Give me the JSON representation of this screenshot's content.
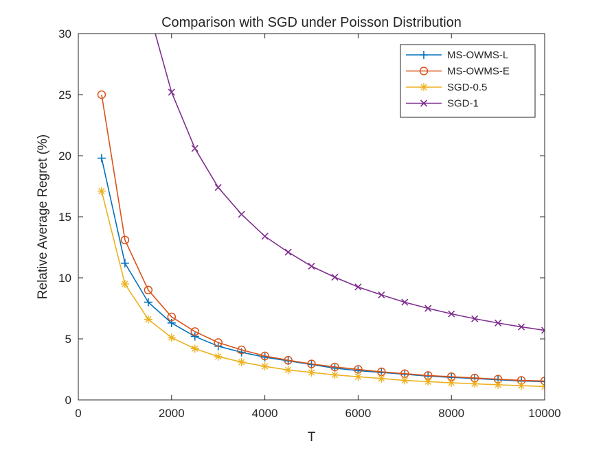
{
  "chart_data": {
    "type": "line",
    "title": "Comparison with SGD under Poisson Distribution",
    "xlabel": "T",
    "ylabel": "Relative Average Regret (%)",
    "xlim": [
      0,
      10000
    ],
    "ylim": [
      0,
      30
    ],
    "xticks": [
      0,
      2000,
      4000,
      6000,
      8000,
      10000
    ],
    "yticks": [
      0,
      5,
      10,
      15,
      20,
      25,
      30
    ],
    "grid": false,
    "legend_position": "top-right",
    "x": [
      500,
      1000,
      1500,
      2000,
      2500,
      3000,
      3500,
      4000,
      4500,
      5000,
      5500,
      6000,
      6500,
      7000,
      7500,
      8000,
      8500,
      9000,
      9500,
      10000
    ],
    "series": [
      {
        "name": "MS-OWMS-L",
        "color": "#0072BD",
        "marker": "plus",
        "values": [
          19.8,
          11.2,
          8.0,
          6.3,
          5.2,
          4.4,
          3.9,
          3.5,
          3.2,
          2.9,
          2.6,
          2.4,
          2.25,
          2.1,
          1.95,
          1.85,
          1.75,
          1.65,
          1.55,
          1.5
        ]
      },
      {
        "name": "MS-OWMS-E",
        "color": "#D95319",
        "marker": "circle",
        "values": [
          25.0,
          13.1,
          9.0,
          6.8,
          5.6,
          4.7,
          4.1,
          3.6,
          3.25,
          2.95,
          2.7,
          2.5,
          2.3,
          2.15,
          2.0,
          1.9,
          1.8,
          1.7,
          1.6,
          1.55
        ]
      },
      {
        "name": "SGD-0.5",
        "color": "#EDB120",
        "marker": "asterisk",
        "values": [
          17.1,
          9.5,
          6.6,
          5.1,
          4.2,
          3.55,
          3.1,
          2.75,
          2.45,
          2.25,
          2.05,
          1.9,
          1.75,
          1.6,
          1.5,
          1.4,
          1.32,
          1.24,
          1.17,
          1.1
        ]
      },
      {
        "name": "SGD-1",
        "color": "#7E2F8E",
        "marker": "x",
        "values": [
          null,
          null,
          null,
          25.2,
          20.6,
          17.4,
          15.2,
          13.4,
          12.1,
          10.95,
          10.05,
          9.25,
          8.6,
          8.0,
          7.5,
          7.05,
          6.65,
          6.3,
          5.98,
          5.7
        ],
        "entry_point": {
          "x": 1650,
          "y": 30
        }
      }
    ]
  }
}
